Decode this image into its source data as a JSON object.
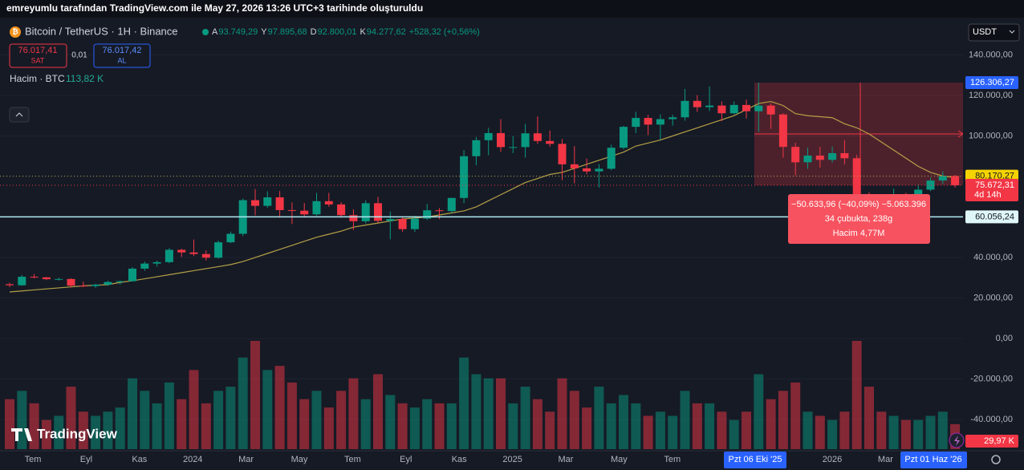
{
  "header": {
    "caption": "emreyumlu tarafından TradingView.com ile May 27, 2026 13:26 UTC+3 tarihinde oluşturuldu"
  },
  "legend": {
    "symbol": "Bitcoin / TetherUS · 1H · Binance",
    "ohlc": [
      {
        "key": "A",
        "value": "93.749,29"
      },
      {
        "key": "Y",
        "value": "97.895,68"
      },
      {
        "key": "D",
        "value": "92.800,01"
      },
      {
        "key": "K",
        "value": "94.277,62"
      }
    ],
    "change": "+528,32 (+0,56%)",
    "sell_price": "76.017,41",
    "sell_label": "SAT",
    "spread": "0,01",
    "buy_price": "76.017,42",
    "buy_label": "AL",
    "volume_title": "Hacim · BTC",
    "volume_value": "113,82 K"
  },
  "currency": "USDT",
  "logo": "TradingView",
  "chart_data": {
    "type": "candlestick",
    "ylim": [
      -55400,
      158400
    ],
    "yticks": [
      {
        "value": 140000,
        "label": "140.000,00"
      },
      {
        "value": 120000,
        "label": "120.000,00"
      },
      {
        "value": 100000,
        "label": "100.000,00"
      },
      {
        "value": 80000,
        "label": "80.000,00"
      },
      {
        "value": 60000,
        "label": "60.000,00"
      },
      {
        "value": 40000,
        "label": "40.000,00"
      },
      {
        "value": 20000,
        "label": "20.000,00"
      },
      {
        "value": 0,
        "label": "0,00"
      },
      {
        "value": -20000,
        "label": "-20.000,00"
      },
      {
        "value": -40000,
        "label": "-40.000,00"
      }
    ],
    "grid": true,
    "up_color": "#089981",
    "down_color": "#f23645",
    "ma_color": "#b5a046",
    "xtick_labels": [
      "Tem",
      "Eyl",
      "Kas",
      "2024",
      "Mar",
      "May",
      "Tem",
      "Eyl",
      "Kas",
      "2025",
      "Mar",
      "May",
      "Tem",
      "2026",
      "Mar"
    ],
    "open": [
      26800,
      26300,
      30500,
      30200,
      29300,
      29400,
      26100,
      25900,
      26600,
      27900,
      28300,
      34500,
      37000,
      37700,
      43800,
      42500,
      41700,
      39900,
      47500,
      51700,
      68300,
      65500,
      69700,
      63400,
      63100,
      61300,
      67800,
      66200,
      60900,
      57900,
      66800,
      58100,
      59000,
      54000,
      59200,
      63300,
      62900,
      69400,
      90000,
      97900,
      101400,
      94500,
      94500,
      101300,
      97500,
      96100,
      86000,
      84000,
      82500,
      83800,
      94200,
      104500,
      108900,
      105600,
      108300,
      109200,
      117300,
      114200,
      115000,
      111200,
      115300,
      112200,
      115000,
      110600,
      94600,
      87000,
      90300,
      88200,
      91500,
      89000,
      70000,
      68500,
      67000,
      70500,
      68000,
      73500,
      78000,
      80200
    ],
    "high": [
      27500,
      31400,
      31800,
      30400,
      30000,
      29700,
      28100,
      27000,
      28500,
      28600,
      35200,
      38000,
      38400,
      44700,
      44300,
      48900,
      43500,
      48400,
      52800,
      69100,
      73800,
      72700,
      72800,
      67200,
      66900,
      71900,
      71900,
      67300,
      63800,
      68300,
      70000,
      62700,
      60000,
      60600,
      66500,
      64400,
      69500,
      93000,
      99500,
      104000,
      108300,
      99900,
      106000,
      109600,
      102700,
      98400,
      95000,
      88800,
      86100,
      95700,
      105000,
      111900,
      110400,
      110600,
      110500,
      123200,
      120200,
      124500,
      117000,
      117000,
      117900,
      126300,
      116100,
      111200,
      96600,
      94200,
      94600,
      94800,
      97900,
      90600,
      72200,
      71300,
      74000,
      71900,
      76000,
      79400,
      82500,
      80800
    ],
    "low": [
      25400,
      26000,
      29700,
      28900,
      28600,
      25200,
      25300,
      24900,
      26000,
      26600,
      28100,
      33400,
      35500,
      37200,
      40300,
      40700,
      38500,
      39500,
      47000,
      50600,
      60800,
      64500,
      59700,
      56500,
      60200,
      60600,
      65000,
      60000,
      53500,
      56800,
      57200,
      49000,
      52600,
      52600,
      58500,
      58900,
      61900,
      66800,
      85600,
      90500,
      92200,
      91500,
      89300,
      96100,
      94700,
      78200,
      76600,
      81000,
      74500,
      83100,
      93300,
      101400,
      100400,
      98200,
      105100,
      107500,
      111900,
      112300,
      107300,
      110600,
      108600,
      102000,
      103500,
      89300,
      80600,
      83800,
      84400,
      86800,
      86000,
      60000,
      62900,
      62500,
      65600,
      65700,
      66600,
      72800,
      76200,
      74500
    ],
    "close": [
      26300,
      30500,
      30200,
      29300,
      29400,
      26100,
      25900,
      26600,
      27900,
      28300,
      34500,
      37000,
      37700,
      43800,
      42500,
      41700,
      39900,
      47500,
      51700,
      68300,
      65500,
      69700,
      63400,
      63100,
      61300,
      67800,
      66200,
      60900,
      57900,
      66800,
      58100,
      59000,
      54000,
      59200,
      63300,
      62900,
      69400,
      90000,
      97900,
      101400,
      94500,
      94500,
      101300,
      97500,
      96100,
      86000,
      84000,
      82500,
      83800,
      94200,
      104500,
      108900,
      105600,
      108300,
      109200,
      117300,
      114200,
      115000,
      111200,
      115300,
      112200,
      115000,
      110600,
      94600,
      87000,
      90300,
      88200,
      91500,
      89000,
      70000,
      68500,
      67000,
      70500,
      68000,
      73500,
      78000,
      80200,
      75672
    ],
    "ma": [
      23000,
      23500,
      24000,
      24500,
      25000,
      25500,
      26000,
      26300,
      26600,
      27700,
      28500,
      29500,
      30500,
      31500,
      32500,
      33500,
      34500,
      35500,
      36500,
      38000,
      40000,
      42000,
      44000,
      46000,
      48000,
      50000,
      51500,
      53000,
      55000,
      56000,
      57000,
      58000,
      59000,
      59500,
      60000,
      61000,
      62000,
      63000,
      65000,
      68000,
      71000,
      74000,
      77000,
      79000,
      81000,
      82000,
      84000,
      86000,
      88000,
      90000,
      92000,
      95000,
      96500,
      98000,
      100000,
      102000,
      104000,
      106000,
      108000,
      110000,
      113000,
      116000,
      117000,
      115000,
      111000,
      110000,
      109500,
      109000,
      106000,
      104000,
      101000,
      97000,
      93000,
      89000,
      85000,
      82000,
      80200,
      79500
    ],
    "volume": [
      60,
      70,
      55,
      35,
      40,
      75,
      45,
      40,
      45,
      50,
      85,
      70,
      55,
      80,
      60,
      95,
      55,
      70,
      75,
      110,
      130,
      95,
      100,
      80,
      60,
      70,
      50,
      70,
      85,
      60,
      90,
      65,
      55,
      50,
      60,
      55,
      55,
      110,
      90,
      85,
      85,
      55,
      75,
      60,
      45,
      85,
      70,
      50,
      75,
      55,
      65,
      55,
      40,
      45,
      40,
      70,
      55,
      55,
      45,
      35,
      45,
      90,
      60,
      70,
      80,
      45,
      40,
      35,
      45,
      130,
      75,
      45,
      40,
      35,
      35,
      40,
      45,
      30
    ],
    "measure_top": {
      "value": 126306.27,
      "label": "126.306,27"
    },
    "ma_tag": {
      "value": 80170.27,
      "label": "80.170,27"
    },
    "last_price": {
      "value": 75672.31,
      "label": "75.672,31"
    },
    "countdown": "4d 14h",
    "hline": {
      "value": 60056.24,
      "label": "60.056,24"
    },
    "volume_tag": "29,97 K",
    "measure": {
      "line1": "−50.633,96 (−40,09%) −5.063.396",
      "line2": "34 çubukta, 238g",
      "line3": "Hacim 4,77M"
    },
    "range_start": "Pzt 06 Eki '25",
    "range_end": "Pzt 01 Haz '26"
  }
}
